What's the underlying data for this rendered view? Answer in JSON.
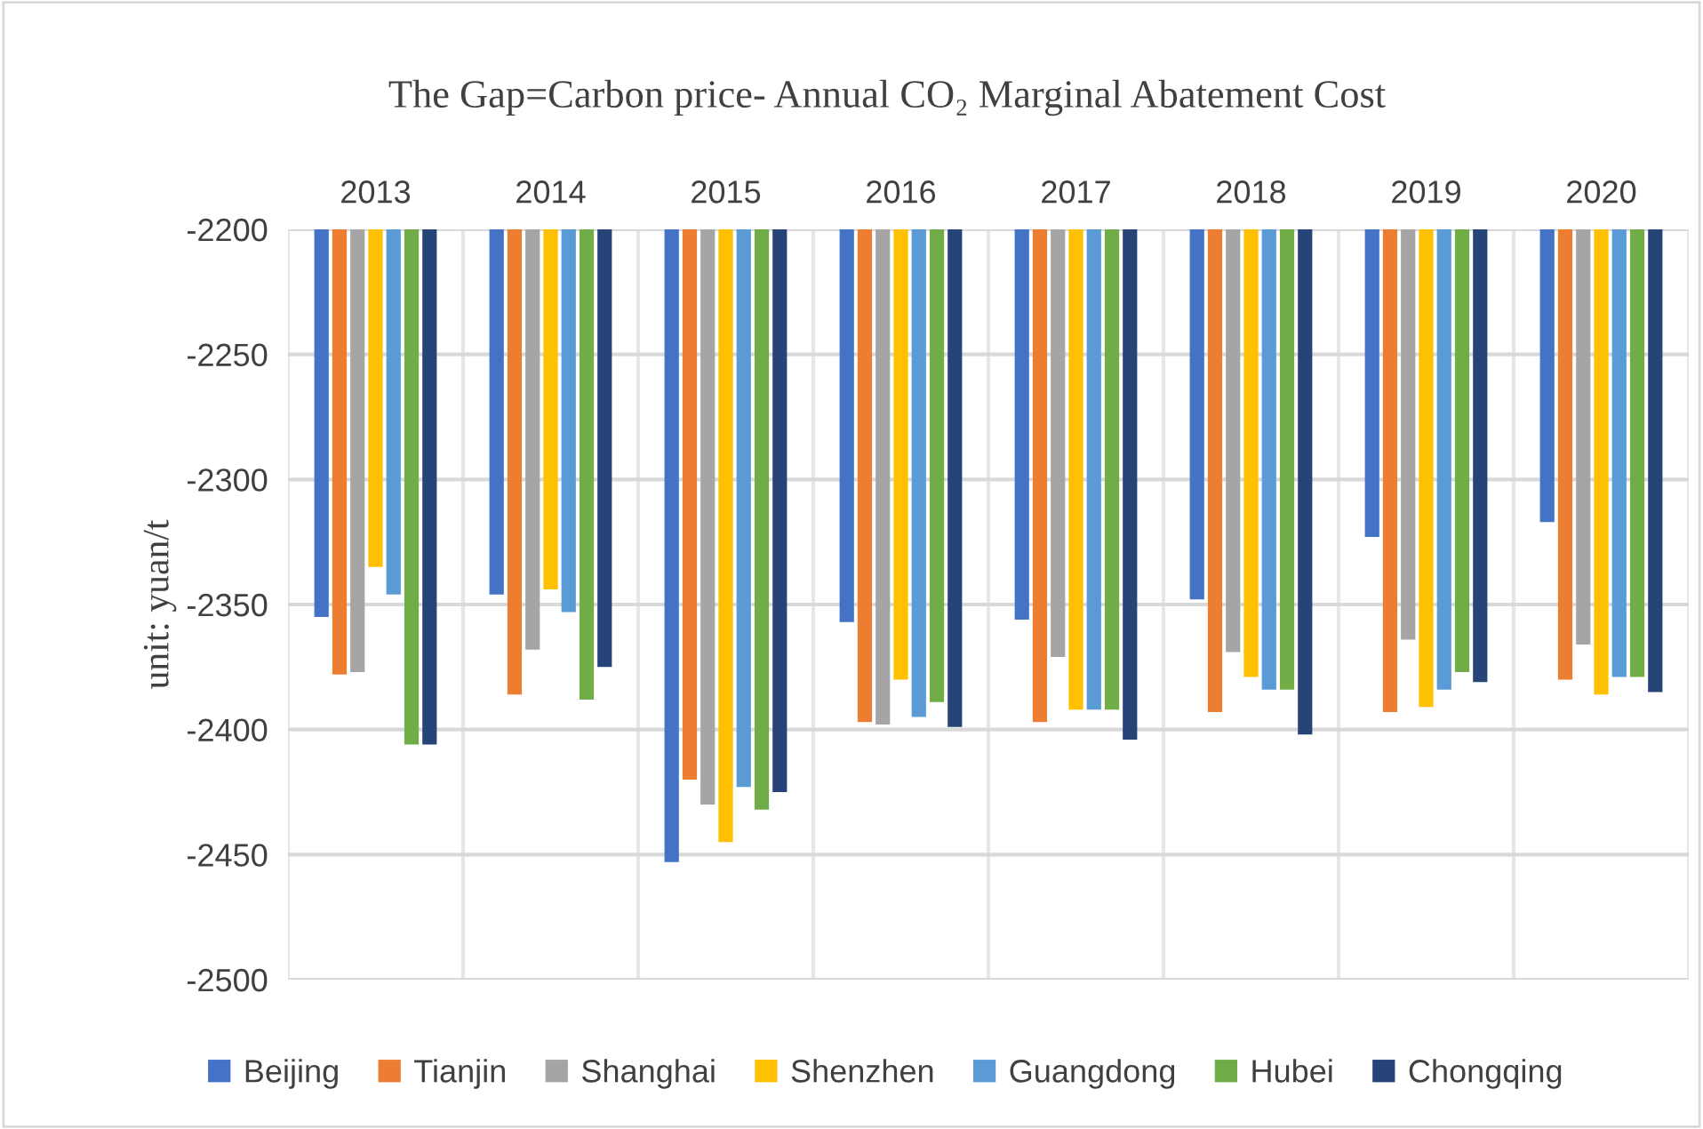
{
  "chart_data": {
    "type": "bar",
    "title": "The Gap=Carbon price- Annual CO₂ Marginal Abatement Cost",
    "ylabel": "unit: yuan/t",
    "categories": [
      "2013",
      "2014",
      "2015",
      "2016",
      "2017",
      "2018",
      "2019",
      "2020"
    ],
    "series": [
      {
        "name": "Beijing",
        "color": "#4472c4",
        "values": [
          -2355,
          -2346,
          -2453,
          -2357,
          -2356,
          -2348,
          -2323,
          -2317
        ]
      },
      {
        "name": "Tianjin",
        "color": "#ed7d31",
        "values": [
          -2378,
          -2386,
          -2420,
          -2397,
          -2397,
          -2393,
          -2393,
          -2380
        ]
      },
      {
        "name": "Shanghai",
        "color": "#a5a5a5",
        "values": [
          -2377,
          -2368,
          -2430,
          -2398,
          -2371,
          -2369,
          -2364,
          -2366
        ]
      },
      {
        "name": "Shenzhen",
        "color": "#ffc000",
        "values": [
          -2335,
          -2344,
          -2445,
          -2380,
          -2392,
          -2379,
          -2391,
          -2386
        ]
      },
      {
        "name": "Guangdong",
        "color": "#5b9bd5",
        "values": [
          -2346,
          -2353,
          -2423,
          -2395,
          -2392,
          -2384,
          -2384,
          -2379
        ]
      },
      {
        "name": "Hubei",
        "color": "#70ad47",
        "values": [
          -2406,
          -2388,
          -2432,
          -2389,
          -2392,
          -2384,
          -2377,
          -2379
        ]
      },
      {
        "name": "Chongqing",
        "color": "#264478",
        "values": [
          -2406,
          -2375,
          -2425,
          -2399,
          -2404,
          -2402,
          -2381,
          -2385
        ]
      }
    ],
    "ylim": [
      -2500,
      -2200
    ],
    "yticks": [
      -2500,
      -2450,
      -2400,
      -2350,
      -2300,
      -2250,
      -2200
    ],
    "grid": true,
    "legend": "bottom"
  }
}
